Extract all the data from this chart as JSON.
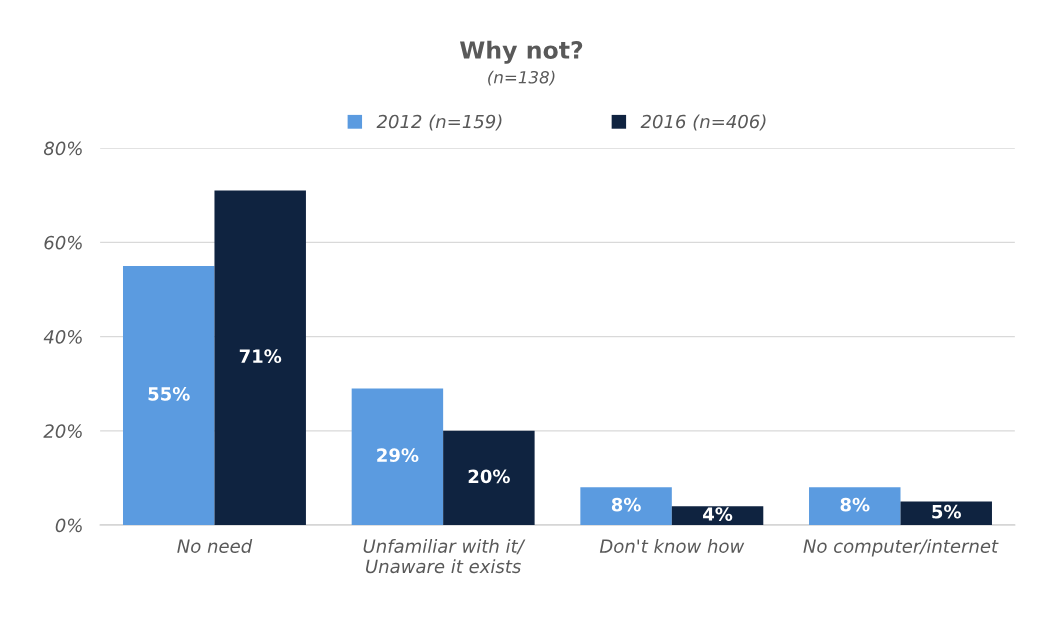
{
  "chart_data": {
    "type": "bar",
    "title": "Why not?",
    "subtitle": "(n=138)",
    "categories": [
      "No need",
      "Unfamiliar with it/\nUnaware it exists",
      "Don't know how",
      "No computer/internet"
    ],
    "series": [
      {
        "name": "2012 (n=159)",
        "color": "#5b9be0",
        "values": [
          55,
          29,
          8,
          8
        ],
        "value_labels": [
          "55%",
          "29%",
          "8%",
          "8%"
        ]
      },
      {
        "name": "2016 (n=406)",
        "color": "#0f2340",
        "values": [
          71,
          20,
          4,
          5
        ],
        "value_labels": [
          "71%",
          "20%",
          "4%",
          "5%"
        ]
      }
    ],
    "ylim": [
      0,
      80
    ],
    "yticks": [
      {
        "value": 0,
        "label": "0%"
      },
      {
        "value": 20,
        "label": "20%"
      },
      {
        "value": 40,
        "label": "40%"
      },
      {
        "value": 60,
        "label": "60%"
      },
      {
        "value": 80,
        "label": "80%"
      }
    ],
    "grid": "y",
    "legend": "top"
  }
}
